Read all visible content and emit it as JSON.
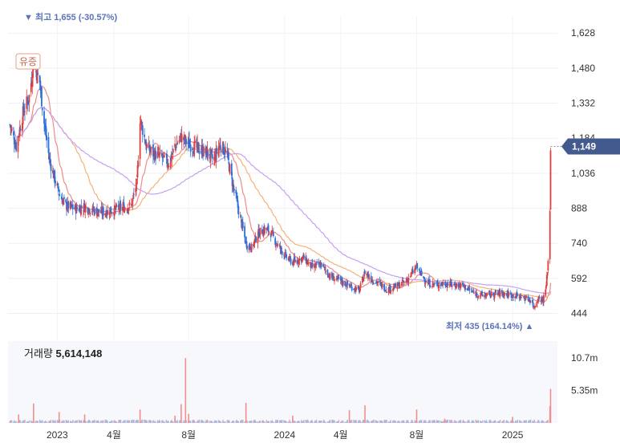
{
  "chart_data": {
    "type": "candlestick",
    "price_axis": {
      "ticks": [
        "1,628",
        "1,480",
        "1,332",
        "1,184",
        "1,036",
        "888",
        "740",
        "592",
        "444"
      ],
      "tick_values": [
        1628,
        1480,
        1332,
        1184,
        1036,
        888,
        740,
        592,
        444
      ],
      "range": [
        395,
        1700
      ]
    },
    "volume_axis": {
      "ticks": [
        "10.7m",
        "5.35m"
      ],
      "tick_values": [
        10700000,
        5350000
      ],
      "range": [
        0,
        13500000
      ]
    },
    "x_axis": {
      "labels": [
        "2023",
        "4월",
        "8월",
        "2024",
        "4월",
        "8월",
        "2025"
      ],
      "label_dates": [
        "2023-01-02",
        "2023-04-03",
        "2023-08-01",
        "2024-01-02",
        "2024-04-01",
        "2024-08-01",
        "2025-01-02"
      ],
      "range": [
        "2022-10-15",
        "2025-03-15"
      ]
    },
    "current_price": {
      "value": 1149,
      "label": "1,149"
    },
    "high_marker": {
      "text": "▼ 최고 1,655 (-30.57%)",
      "value": 1655,
      "date": "2022-11-25"
    },
    "low_marker": {
      "text": "최저 435 (164.14%) ▲",
      "value": 435,
      "date": "2025-02-05"
    },
    "event_marker": {
      "text": "유증",
      "date": "2022-11-01"
    },
    "volume_label": "거래량",
    "volume_value": "5,614,148",
    "close_series": [
      [
        "2022-10-18",
        1240
      ],
      [
        "2022-10-28",
        1150
      ],
      [
        "2022-11-08",
        1290
      ],
      [
        "2022-11-18",
        1360
      ],
      [
        "2022-11-25",
        1500
      ],
      [
        "2022-12-05",
        1420
      ],
      [
        "2022-12-12",
        1250
      ],
      [
        "2022-12-20",
        1100
      ],
      [
        "2022-12-28",
        1020
      ],
      [
        "2023-01-05",
        950
      ],
      [
        "2023-01-15",
        900
      ],
      [
        "2023-02-01",
        885
      ],
      [
        "2023-02-15",
        895
      ],
      [
        "2023-03-01",
        880
      ],
      [
        "2023-03-15",
        870
      ],
      [
        "2023-04-01",
        880
      ],
      [
        "2023-04-15",
        890
      ],
      [
        "2023-05-01",
        900
      ],
      [
        "2023-05-10",
        1000
      ],
      [
        "2023-05-15",
        1270
      ],
      [
        "2023-05-25",
        1150
      ],
      [
        "2023-06-05",
        1120
      ],
      [
        "2023-06-20",
        1100
      ],
      [
        "2023-07-01",
        1080
      ],
      [
        "2023-07-10",
        1150
      ],
      [
        "2023-07-20",
        1190
      ],
      [
        "2023-08-01",
        1160
      ],
      [
        "2023-08-15",
        1140
      ],
      [
        "2023-09-01",
        1120
      ],
      [
        "2023-09-10",
        1090
      ],
      [
        "2023-09-20",
        1160
      ],
      [
        "2023-10-01",
        1120
      ],
      [
        "2023-10-10",
        1000
      ],
      [
        "2023-10-20",
        880
      ],
      [
        "2023-11-01",
        740
      ],
      [
        "2023-11-10",
        720
      ],
      [
        "2023-11-20",
        780
      ],
      [
        "2023-12-01",
        800
      ],
      [
        "2023-12-10",
        790
      ],
      [
        "2023-12-20",
        740
      ],
      [
        "2024-01-05",
        680
      ],
      [
        "2024-01-15",
        660
      ],
      [
        "2024-02-01",
        680
      ],
      [
        "2024-02-15",
        640
      ],
      [
        "2024-03-01",
        650
      ],
      [
        "2024-03-15",
        600
      ],
      [
        "2024-04-01",
        580
      ],
      [
        "2024-04-15",
        560
      ],
      [
        "2024-05-01",
        540
      ],
      [
        "2024-05-10",
        620
      ],
      [
        "2024-05-20",
        590
      ],
      [
        "2024-06-01",
        570
      ],
      [
        "2024-06-15",
        545
      ],
      [
        "2024-07-01",
        560
      ],
      [
        "2024-07-15",
        580
      ],
      [
        "2024-08-01",
        640
      ],
      [
        "2024-08-10",
        600
      ],
      [
        "2024-08-20",
        570
      ],
      [
        "2024-09-01",
        565
      ],
      [
        "2024-09-15",
        570
      ],
      [
        "2024-10-01",
        565
      ],
      [
        "2024-10-15",
        560
      ],
      [
        "2024-11-01",
        530
      ],
      [
        "2024-11-15",
        520
      ],
      [
        "2024-12-01",
        525
      ],
      [
        "2024-12-15",
        530
      ],
      [
        "2025-01-02",
        520
      ],
      [
        "2025-01-15",
        515
      ],
      [
        "2025-02-01",
        500
      ],
      [
        "2025-02-05",
        470
      ],
      [
        "2025-02-12",
        510
      ],
      [
        "2025-02-20",
        500
      ],
      [
        "2025-02-25",
        560
      ],
      [
        "2025-03-01",
        700
      ],
      [
        "2025-03-03",
        880
      ],
      [
        "2025-03-04",
        1149
      ]
    ],
    "volume_spikes": [
      [
        "2022-11-01",
        1400000
      ],
      [
        "2022-11-25",
        3200000
      ],
      [
        "2023-01-05",
        1800000
      ],
      [
        "2023-02-15",
        1400000
      ],
      [
        "2023-05-15",
        2200000
      ],
      [
        "2023-07-10",
        1200000
      ],
      [
        "2023-07-20",
        3100000
      ],
      [
        "2023-07-27",
        10700000
      ],
      [
        "2023-08-01",
        1500000
      ],
      [
        "2023-11-01",
        3300000
      ],
      [
        "2024-01-15",
        1200000
      ],
      [
        "2024-04-15",
        2100000
      ],
      [
        "2024-05-10",
        2900000
      ],
      [
        "2024-08-01",
        2200000
      ],
      [
        "2024-09-15",
        700000
      ],
      [
        "2025-01-02",
        1000000
      ],
      [
        "2025-03-03",
        2800000
      ],
      [
        "2025-03-04",
        5614148
      ]
    ]
  }
}
